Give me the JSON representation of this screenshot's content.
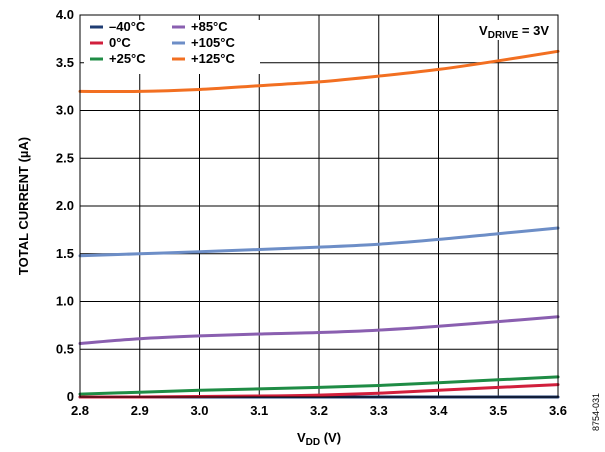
{
  "chart_data": {
    "type": "line",
    "xlabel": {
      "main": "V",
      "sub": "DD",
      "rest": " (V)"
    },
    "ylabel": "TOTAL CURRENT (µA)",
    "xlim": [
      2.8,
      3.6
    ],
    "ylim": [
      0,
      4.0
    ],
    "x_ticks": [
      "2.8",
      "2.9",
      "3.0",
      "3.1",
      "3.2",
      "3.3",
      "3.4",
      "3.5",
      "3.6"
    ],
    "y_ticks": [
      "0",
      "0.5",
      "1.0",
      "1.5",
      "2.0",
      "2.5",
      "3.0",
      "3.5",
      "4.0"
    ],
    "grid": true,
    "legend_position": "top-left",
    "annotation": {
      "main": "V",
      "sub": "DRIVE",
      "rest": " = 3V"
    },
    "figure_id": "8754-031",
    "x": [
      2.8,
      2.9,
      3.0,
      3.1,
      3.2,
      3.3,
      3.4,
      3.5,
      3.6
    ],
    "series": [
      {
        "name": "–40°C",
        "color": "#1f3c73",
        "values": [
          0.0,
          0.0,
          0.0,
          0.0,
          0.0,
          0.0,
          0.0,
          0.0,
          0.0
        ]
      },
      {
        "name": "0°C",
        "color": "#d11f3c",
        "values": [
          0.0,
          0.0,
          0.005,
          0.01,
          0.02,
          0.04,
          0.07,
          0.1,
          0.13
        ]
      },
      {
        "name": "+25°C",
        "color": "#1f8c45",
        "values": [
          0.03,
          0.05,
          0.07,
          0.085,
          0.1,
          0.12,
          0.15,
          0.18,
          0.21
        ]
      },
      {
        "name": "+85°C",
        "color": "#8a5fb0",
        "values": [
          0.56,
          0.61,
          0.64,
          0.66,
          0.675,
          0.7,
          0.74,
          0.79,
          0.84
        ]
      },
      {
        "name": "+105°C",
        "color": "#6d8ec7",
        "values": [
          1.48,
          1.5,
          1.52,
          1.545,
          1.57,
          1.6,
          1.65,
          1.71,
          1.77
        ]
      },
      {
        "name": "+125°C",
        "color": "#f26f21",
        "values": [
          3.2,
          3.2,
          3.22,
          3.26,
          3.3,
          3.36,
          3.43,
          3.52,
          3.62
        ]
      }
    ]
  }
}
